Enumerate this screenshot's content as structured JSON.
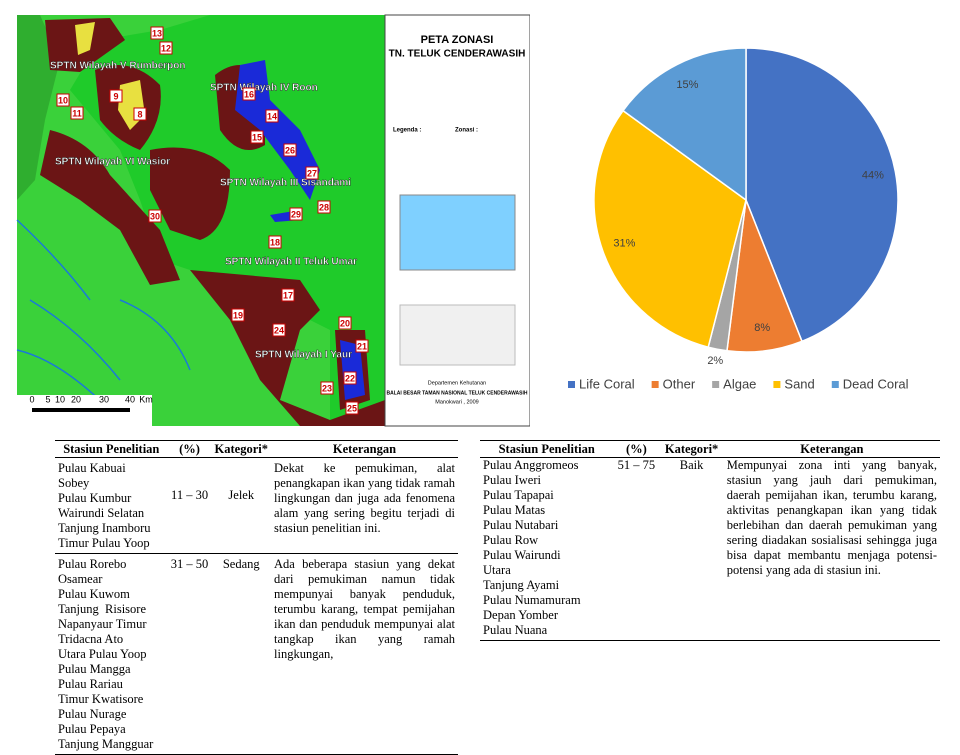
{
  "chart_data": {
    "type": "pie",
    "categories": [
      "Life Coral",
      "Other",
      "Algae",
      "Sand",
      "Dead Coral"
    ],
    "values": [
      44,
      8,
      2,
      31,
      15
    ],
    "value_labels": [
      "44%",
      "8%",
      "2%",
      "31%",
      "15%"
    ],
    "colors": [
      "#4472c4",
      "#ed7d31",
      "#a5a5a5",
      "#ffc000",
      "#5b9bd5"
    ],
    "legend": "bottom"
  },
  "map": {
    "title": "PETA ZONASI",
    "subtitle": "TN. TELUK CENDERAWASIH",
    "region_labels": [
      "SPTN Wilayah V Rumberpon",
      "SPTN Wilayah IV Roon",
      "SPTN Wilayah VI Wasior",
      "SPTN Wilayah III Sisandami",
      "SPTN Wilayah II Teluk Umar",
      "SPTN Wilayah I Yaur"
    ],
    "site_numbers": [
      "13",
      "12",
      "10",
      "11",
      "9",
      "8",
      "16",
      "15",
      "14",
      "26",
      "27",
      "28",
      "29",
      "30",
      "18",
      "17",
      "19",
      "20",
      "21",
      "24",
      "22",
      "23",
      "25"
    ],
    "scale_labels": [
      "0",
      "5",
      "10",
      "20",
      "30",
      "40",
      "Km"
    ],
    "legend_labels": [
      "Legenda :",
      "Zonasi :"
    ],
    "footer": [
      "Departemen Kehutanan",
      "BALAI BESAR TAMAN NASIONAL TELUK CENDERAWASIH",
      "Manokwari , 2009"
    ]
  },
  "tables": [
    {
      "header": [
        "Stasiun Penelitian",
        "(%)",
        "Kategori*",
        "Keterangan"
      ],
      "rows": [
        {
          "stations": [
            "Pulau Kabuai",
            "Sobey",
            "Pulau Kumbur",
            "Wairundi Selatan",
            "Tanjung Inamboru",
            "Timur Pulau Yoop"
          ],
          "range": "11 – 30",
          "category": "Jelek",
          "note": "Dekat ke pemukiman, alat penangkapan ikan yang tidak ramah lingkungan dan juga ada fenomena alam yang sering begitu terjadi di stasiun penelitian ini."
        },
        {
          "stations": [
            "Pulau Rorebo",
            "Osamear",
            "Pulau Kuwom",
            "Tanjung  Risisore",
            "Napanyaur Timur",
            "Tridacna Ato",
            "Utara Pulau Yoop",
            "Pulau Mangga",
            "Pulau Rariau",
            "Timur Kwatisore",
            "Pulau Nurage",
            "Pulau Pepaya",
            "Tanjung Mangguar"
          ],
          "range": "31 – 50",
          "category": "Sedang",
          "note": "Ada beberapa stasiun yang dekat dari pemukiman namun tidak mempunyai banyak penduduk, terumbu karang, tempat pemijahan ikan dan penduduk mempunyai alat tangkap ikan yang ramah lingkungan,"
        }
      ]
    },
    {
      "header": [
        "Stasiun Penelitian",
        "(%)",
        "Kategori*",
        "Keterangan"
      ],
      "rows": [
        {
          "stations": [
            "Pulau Anggromeos",
            "Pulau Iweri",
            "Pulau Tapapai",
            "Pulau Matas",
            "Pulau Nutabari",
            "Pulau Row",
            "Pulau Wairundi",
            "Utara",
            "Tanjung Ayami",
            "Pulau Numamuram",
            "Depan Yomber",
            "Pulau Nuana"
          ],
          "range": "51 – 75",
          "category": "Baik",
          "note": "Mempunyai zona inti yang banyak, stasiun yang jauh dari pemukiman, daerah pemijahan ikan, terumbu karang, aktivitas penangkapan ikan yang tidak berlebihan dan daerah pemukiman yang sering diadakan sosialisasi sehingga juga bisa dapat membantu menjaga potensi-potensi yang ada di stasiun ini."
        }
      ]
    }
  ]
}
